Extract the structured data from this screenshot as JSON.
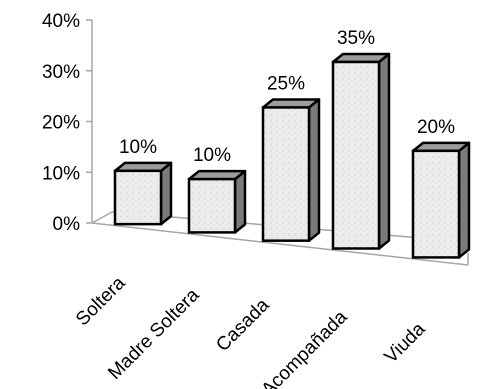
{
  "chart_data": {
    "type": "bar",
    "title": "",
    "xlabel": "",
    "ylabel": "",
    "categories": [
      "Soltera",
      "Madre Soltera",
      "Casada",
      "Acompañada",
      "Viuda"
    ],
    "values": [
      10,
      10,
      25,
      35,
      20
    ],
    "data_labels": [
      "10%",
      "10%",
      "25%",
      "35%",
      "20%"
    ],
    "y_ticks": [
      0,
      10,
      20,
      30,
      40
    ],
    "y_tick_labels": [
      "0%",
      "10%",
      "20%",
      "30%",
      "40%"
    ],
    "ylim": [
      0,
      40
    ],
    "grid": false,
    "legend": "none",
    "style": "3d-column",
    "colors": {
      "bar_front": "#e9e9e9",
      "bar_top": "#9c9c9c",
      "bar_side": "#7a7a7a",
      "bar_edge": "#000000",
      "axis": "#a6a6a6"
    }
  }
}
